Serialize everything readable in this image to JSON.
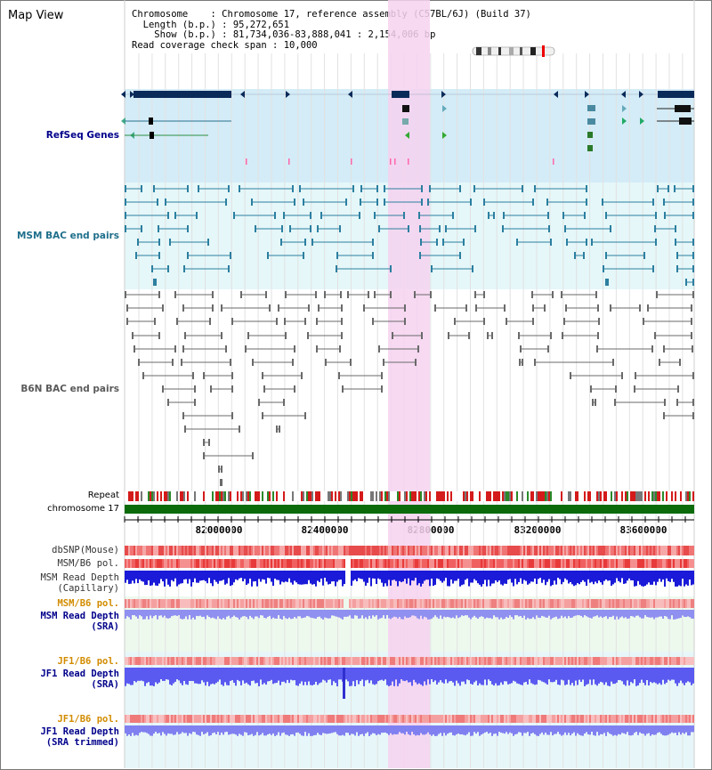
{
  "page": {
    "title": "Map View"
  },
  "info": {
    "chromosome_key": "Chromosome",
    "chromosome_val": "Chromosome 17, reference assembly (C57BL/6J) (Build 37)",
    "length_key": "Length (b.p.)",
    "length_val": "95,272,651",
    "show_key": "Show (b.p.)",
    "show_val": "81,734,036-83,888,041 : 2,154,006 bp",
    "span_key": "Read coverage check span",
    "span_val": "10,000"
  },
  "tracks": {
    "refseq": "RefSeq Genes",
    "msm_bac": "MSM BAC end pairs",
    "b6n_bac": "B6N BAC end pairs",
    "repeat": "Repeat",
    "chromosome": "chromosome 17",
    "dbsnp": "dbSNP(Mouse)",
    "msm_b6_pol": "MSM/B6 pol.",
    "msm_depth_cap": "MSM Read Depth\n(Capillary)",
    "msm_b6_pol_sra": "MSM/B6 pol.",
    "msm_depth_sra": "MSM Read Depth\n(SRA)",
    "jf1_b6_pol": "JF1/B6 pol.",
    "jf1_depth_sra": "JF1 Read Depth\n(SRA)",
    "jf1_b6_pol_trim": "JF1/B6 pol.",
    "jf1_depth_trim": "JF1 Read Depth\n(SRA trimmed)"
  },
  "axis": {
    "ticks": [
      "82000000",
      "82400000",
      "82800000",
      "83200000",
      "83600000"
    ]
  },
  "colors": {
    "refseq_bg": "#d4ecf7",
    "msm_bac_bg": "#e5f7f9",
    "highlight": "#f6d2f0",
    "gene_dark": "#0a2a5a",
    "msm_line": "#2c7fa0",
    "b6n_line": "#6a6a6a",
    "chromosome": "#0b6b0b",
    "label_blue": "#00008b",
    "label_orange": "#d28c00",
    "label_black": "#000000"
  }
}
